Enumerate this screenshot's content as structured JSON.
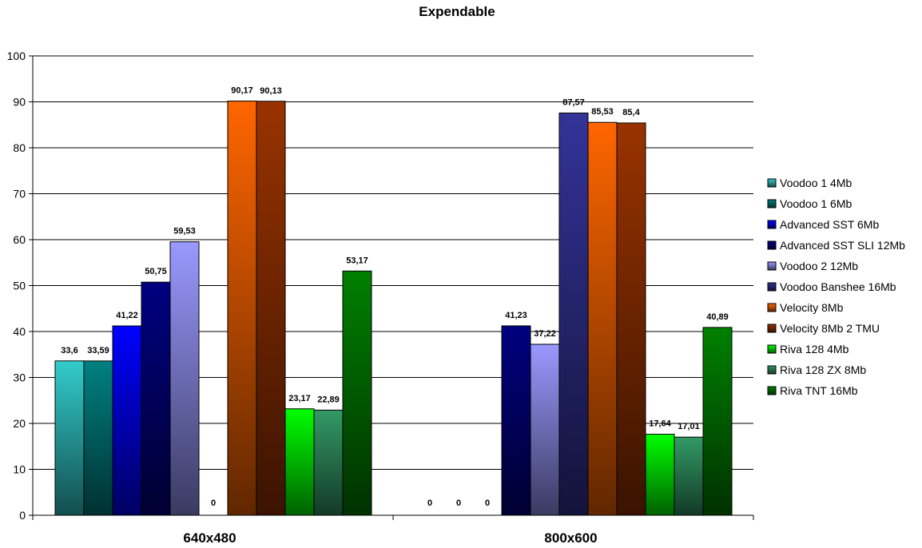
{
  "chart_data": {
    "type": "bar",
    "title": "Expendable",
    "xlabel": "",
    "ylabel": "",
    "ylim": [
      0,
      100
    ],
    "yticks": [
      0,
      10,
      20,
      30,
      40,
      50,
      60,
      70,
      80,
      90,
      100
    ],
    "grid": true,
    "legend_position": "right",
    "categories": [
      "640x480",
      "800x600"
    ],
    "series": [
      {
        "name": "Voodoo 1 4Mb",
        "color": "#33CCCC",
        "values": [
          33.6,
          null
        ],
        "labels": [
          "33,6",
          ""
        ]
      },
      {
        "name": "Voodoo 1 6Mb",
        "color": "#008080",
        "values": [
          33.59,
          null
        ],
        "labels": [
          "33,59",
          ""
        ]
      },
      {
        "name": "Advanced SST 6Mb",
        "color": "#0000FF",
        "values": [
          41.22,
          0
        ],
        "labels": [
          "41,22",
          "0"
        ]
      },
      {
        "name": "Advanced SST SLI 12Mb",
        "color": "#000080",
        "values": [
          50.75,
          41.23
        ],
        "labels": [
          "50,75",
          "41,23"
        ]
      },
      {
        "name": "Voodoo 2 12Mb",
        "color": "#9999FF",
        "values": [
          59.53,
          37.22
        ],
        "labels": [
          "59,53",
          "37,22"
        ]
      },
      {
        "name": "Voodoo Banshee 16Mb",
        "color": "#333399",
        "values": [
          0,
          87.57
        ],
        "labels": [
          "0",
          "87,57"
        ]
      },
      {
        "name": "Velocity 8Mb",
        "color": "#FF6600",
        "values": [
          90.17,
          85.53
        ],
        "labels": [
          "90,17",
          "85,53"
        ]
      },
      {
        "name": "Velocity 8Mb 2 TMU",
        "color": "#993300",
        "values": [
          90.13,
          85.4
        ],
        "labels": [
          "90,13",
          "85,4"
        ]
      },
      {
        "name": "Riva 128 4Mb",
        "color": "#00FF00",
        "values": [
          23.17,
          17.64
        ],
        "labels": [
          "23,17",
          "17,64"
        ]
      },
      {
        "name": "Riva 128 ZX 8Mb",
        "color": "#339966",
        "values": [
          22.89,
          17.01
        ],
        "labels": [
          "22,89",
          "17,01"
        ]
      },
      {
        "name": "Riva TNT 16Mb",
        "color": "#008000",
        "values": [
          53.17,
          40.89
        ],
        "labels": [
          "53,17",
          "40,89"
        ]
      }
    ],
    "zero_labels": [
      {
        "category": 1,
        "series": 0,
        "text": "0"
      },
      {
        "category": 1,
        "series": 1,
        "text": "0"
      }
    ]
  }
}
